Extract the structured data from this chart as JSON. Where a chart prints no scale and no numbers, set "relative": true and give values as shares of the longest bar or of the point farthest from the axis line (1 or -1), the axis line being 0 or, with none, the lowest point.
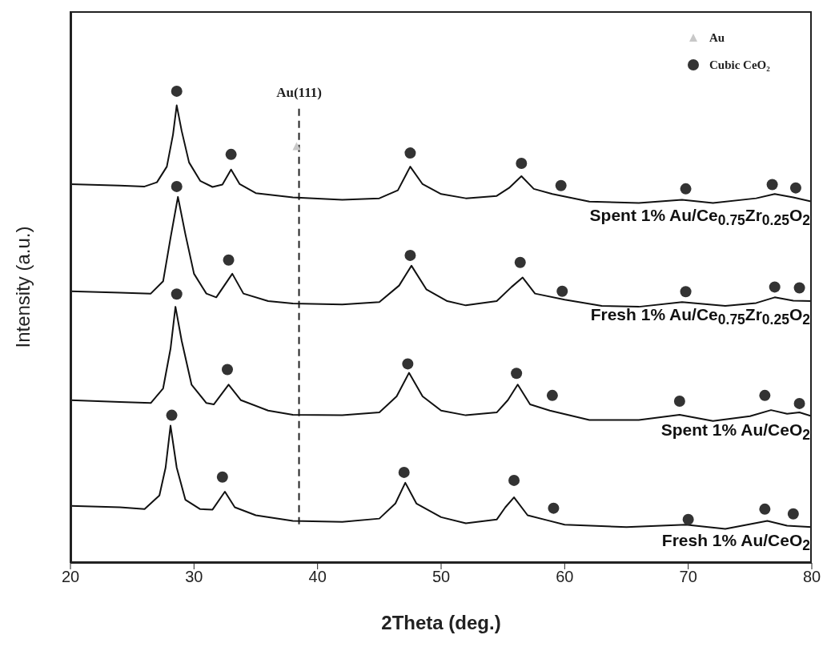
{
  "chart_data": {
    "type": "line",
    "relative": true,
    "xlabel": "2Theta (deg.)",
    "ylabel": "Intensity (a.u.)",
    "xlim": [
      20,
      80
    ],
    "xticks": [
      20,
      30,
      40,
      50,
      60,
      70,
      80
    ],
    "legend": "top right",
    "ref_lines": [
      {
        "axis": "x",
        "value": 38.5,
        "label": "Au(111)",
        "line_style": "dashed",
        "color": "#222222"
      }
    ],
    "series": [
      {
        "name": "Spent 1% Au/Ce$_{0.75}$Zr$_{0.25}$O$_{2}$",
        "color": "#111111",
        "marker": "none",
        "x": [
          20,
          24,
          26,
          27,
          27.8,
          28.3,
          28.6,
          29,
          29.6,
          30.5,
          31.5,
          32.3,
          33,
          33.7,
          35,
          38,
          42,
          45,
          46.5,
          47.5,
          48.5,
          50,
          52,
          54.5,
          55.5,
          56.5,
          57.5,
          59,
          62,
          66,
          69.5,
          72,
          75.5,
          77,
          78.5,
          80
        ],
        "values": [
          0.803,
          0.8,
          0.798,
          0.807,
          0.84,
          0.908,
          0.97,
          0.916,
          0.849,
          0.81,
          0.797,
          0.802,
          0.834,
          0.803,
          0.784,
          0.775,
          0.77,
          0.773,
          0.79,
          0.84,
          0.803,
          0.782,
          0.773,
          0.778,
          0.795,
          0.82,
          0.793,
          0.782,
          0.766,
          0.763,
          0.77,
          0.763,
          0.773,
          0.782,
          0.775,
          0.766
        ]
      },
      {
        "name": "Fresh 1% Au/Ce$_{0.75}$Zr$_{0.25}$O$_{2}$",
        "color": "#111111",
        "marker": "none",
        "x": [
          20,
          24,
          26.5,
          27.5,
          28.1,
          28.7,
          29.3,
          30,
          31,
          31.8,
          33.1,
          34,
          36,
          38,
          42,
          45,
          46.6,
          47.6,
          48.8,
          50.5,
          52,
          54.5,
          55.7,
          56.6,
          57.6,
          60,
          63,
          66,
          69.5,
          73,
          75.5,
          77,
          78.5,
          80
        ],
        "values": [
          0.576,
          0.573,
          0.571,
          0.597,
          0.689,
          0.776,
          0.697,
          0.613,
          0.571,
          0.563,
          0.613,
          0.571,
          0.555,
          0.55,
          0.548,
          0.553,
          0.588,
          0.63,
          0.58,
          0.555,
          0.546,
          0.555,
          0.585,
          0.605,
          0.571,
          0.558,
          0.545,
          0.543,
          0.553,
          0.545,
          0.551,
          0.563,
          0.556,
          0.555
        ]
      },
      {
        "name": "Spent 1% Au/CeO$_{2}$",
        "color": "#111111",
        "marker": "none",
        "x": [
          20,
          24,
          26.5,
          27.5,
          28.1,
          28.5,
          29,
          29.8,
          31,
          31.6,
          32.8,
          33.8,
          36,
          38,
          42,
          45,
          46.4,
          47.4,
          48.5,
          50,
          52,
          54.5,
          55.4,
          56.2,
          57.2,
          58.8,
          62,
          66,
          69.3,
          72,
          75,
          76.7,
          78,
          79,
          80
        ],
        "values": [
          0.345,
          0.341,
          0.339,
          0.37,
          0.454,
          0.543,
          0.471,
          0.378,
          0.339,
          0.336,
          0.378,
          0.345,
          0.323,
          0.314,
          0.313,
          0.319,
          0.353,
          0.403,
          0.353,
          0.323,
          0.313,
          0.319,
          0.345,
          0.378,
          0.336,
          0.323,
          0.303,
          0.303,
          0.314,
          0.301,
          0.311,
          0.324,
          0.316,
          0.319,
          0.311
        ]
      },
      {
        "name": "Fresh 1% Au/CeO$_{2}$",
        "color": "#111111",
        "marker": "none",
        "x": [
          20,
          24,
          26,
          27.2,
          27.7,
          28.1,
          28.6,
          29.3,
          30.5,
          31.5,
          32.5,
          33.3,
          35,
          38,
          42,
          45,
          46.3,
          47.1,
          48,
          50,
          52,
          54.5,
          55.2,
          55.9,
          57,
          58.5,
          60,
          65,
          69.8,
          73,
          76.4,
          78,
          80
        ],
        "values": [
          0.121,
          0.118,
          0.114,
          0.143,
          0.202,
          0.291,
          0.202,
          0.134,
          0.114,
          0.113,
          0.151,
          0.118,
          0.101,
          0.089,
          0.087,
          0.094,
          0.126,
          0.17,
          0.126,
          0.097,
          0.084,
          0.092,
          0.118,
          0.139,
          0.101,
          0.091,
          0.081,
          0.076,
          0.081,
          0.072,
          0.089,
          0.079,
          0.076
        ]
      },
      {
        "type": "scatter",
        "name": "Au",
        "color": "#c8c8c8",
        "marker": "triangle",
        "x": [
          38.3
        ],
        "values": [
          0.882
        ]
      },
      {
        "type": "scatter",
        "name": "Cubic CeO₂",
        "color": "#333333",
        "marker": "circle",
        "x": [
          28.6,
          33,
          47.5,
          56.5,
          59.7,
          69.8,
          76.8,
          78.7,
          28.6,
          32.8,
          47.5,
          56.4,
          59.8,
          69.8,
          77,
          79,
          28.6,
          32.7,
          47.3,
          56.1,
          59,
          69.3,
          76.2,
          79,
          28.2,
          32.3,
          47,
          55.9,
          59.1,
          70,
          76.2,
          78.5
        ],
        "values": [
          1.0,
          0.866,
          0.869,
          0.847,
          0.8,
          0.793,
          0.802,
          0.795,
          0.798,
          0.642,
          0.652,
          0.637,
          0.576,
          0.575,
          0.585,
          0.583,
          0.57,
          0.41,
          0.422,
          0.402,
          0.355,
          0.343,
          0.355,
          0.338,
          0.313,
          0.182,
          0.192,
          0.175,
          0.116,
          0.092,
          0.114,
          0.104
        ]
      }
    ]
  }
}
